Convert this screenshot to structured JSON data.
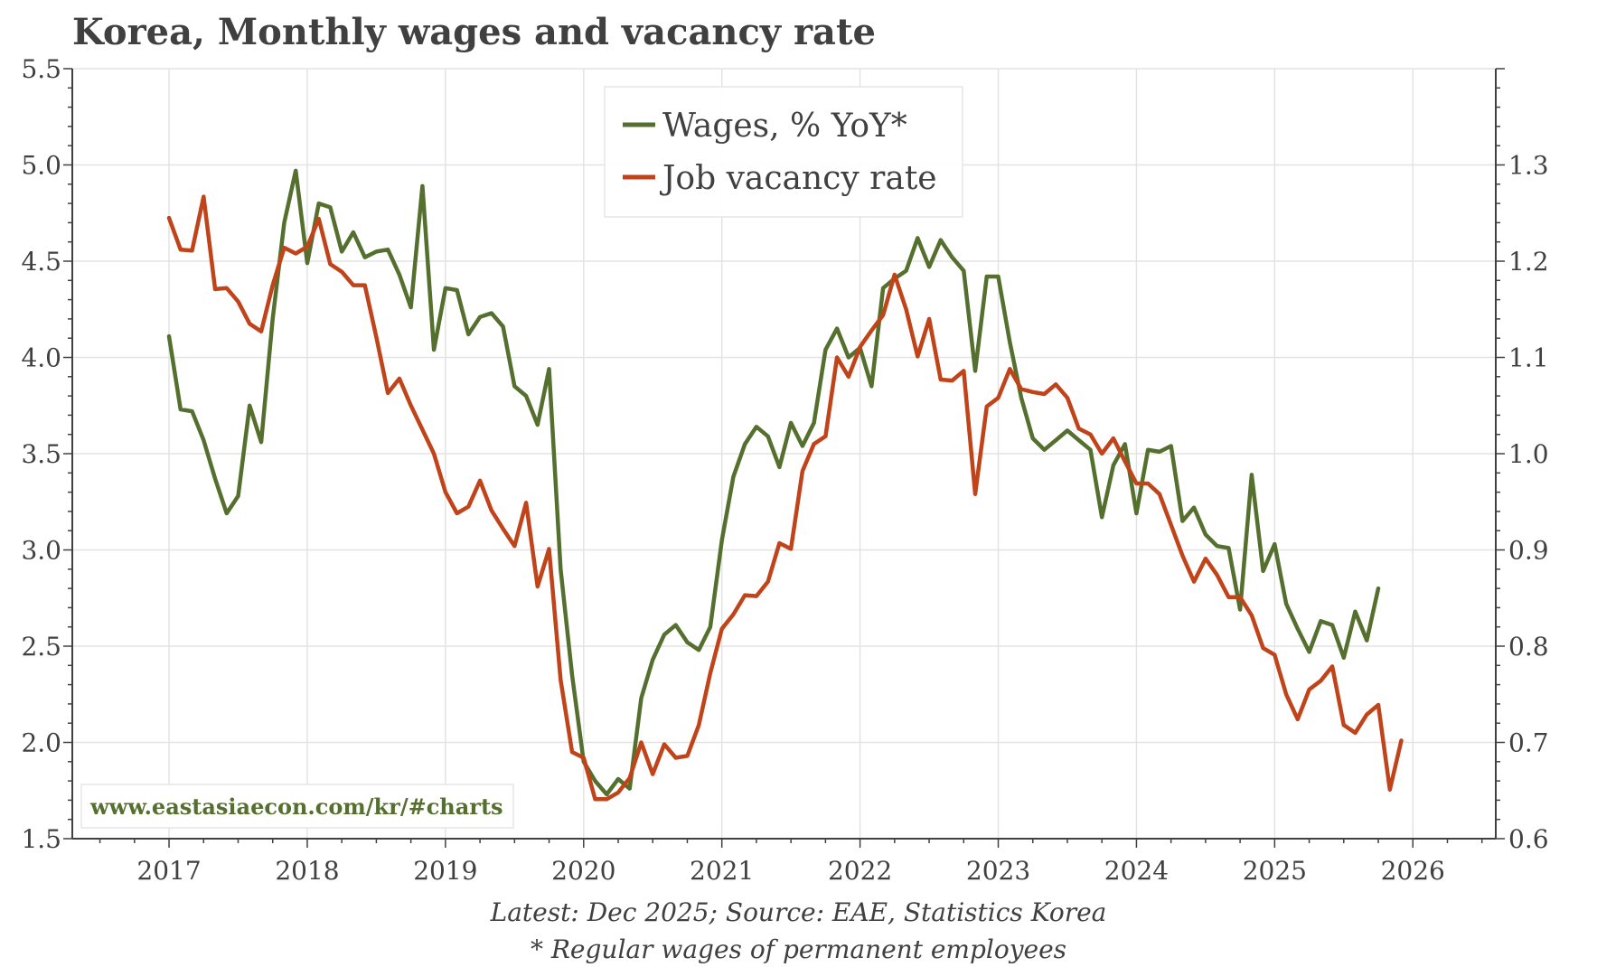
{
  "title": "Korea, Monthly wages and vacancy rate",
  "footnotes": {
    "source": "Latest: Dec 2025; Source: EAE, Statistics Korea",
    "note": "* Regular wages of permanent employees"
  },
  "watermark": "www.eastasiaecon.com/kr/#charts",
  "colors": {
    "wages": "#55702e",
    "vacancy": "#c0431a",
    "text": "#404040",
    "grid": "#e3e3e3",
    "axis": "#404040",
    "watermark": "#55702e"
  },
  "chart_data": {
    "type": "line",
    "title": "Korea, Monthly wages and vacancy rate",
    "xlabel": "",
    "x_ticks": [
      "2017",
      "2018",
      "2019",
      "2020",
      "2021",
      "2022",
      "2023",
      "2024",
      "2025",
      "2026"
    ],
    "xlim": [
      2016.3,
      2026.6
    ],
    "y_left": {
      "ylim": [
        1.5,
        5.5
      ],
      "ticks": [
        "1.5",
        "2.0",
        "2.5",
        "3.0",
        "3.5",
        "4.0",
        "4.5",
        "5.0",
        "5.5"
      ]
    },
    "y_right": {
      "ylim": [
        0.6,
        1.4
      ],
      "ticks": [
        "0.6",
        "0.7",
        "0.8",
        "0.9",
        "1.0",
        "1.1",
        "1.2",
        "1.3"
      ]
    },
    "grid": true,
    "legend_position": "top-center",
    "series": [
      {
        "name": "Wages, % YoY*",
        "axis": "left",
        "start": "2017-01",
        "values": [
          4.11,
          3.73,
          3.72,
          3.57,
          3.37,
          3.19,
          3.28,
          3.75,
          3.56,
          4.2,
          4.7,
          4.97,
          4.49,
          4.8,
          4.78,
          4.55,
          4.65,
          4.52,
          4.55,
          4.56,
          4.43,
          4.26,
          4.89,
          4.04,
          4.36,
          4.35,
          4.12,
          4.21,
          4.23,
          4.16,
          3.85,
          3.8,
          3.65,
          3.94,
          2.9,
          2.35,
          1.9,
          1.8,
          1.73,
          1.81,
          1.76,
          2.23,
          2.43,
          2.56,
          2.61,
          2.52,
          2.48,
          2.6,
          3.05,
          3.38,
          3.55,
          3.64,
          3.59,
          3.43,
          3.66,
          3.54,
          3.66,
          4.04,
          4.15,
          4.0,
          4.05,
          3.85,
          4.36,
          4.41,
          4.45,
          4.62,
          4.47,
          4.61,
          4.52,
          4.45,
          3.93,
          4.42,
          4.42,
          4.08,
          3.79,
          3.58,
          3.52,
          3.57,
          3.62,
          3.57,
          3.52,
          3.17,
          3.44,
          3.55,
          3.19,
          3.52,
          3.51,
          3.54,
          3.15,
          3.22,
          3.08,
          3.02,
          3.01,
          2.69,
          3.39,
          2.89,
          3.03,
          2.72,
          2.59,
          2.47,
          2.63,
          2.61,
          2.44,
          2.68,
          2.53,
          2.8
        ]
      },
      {
        "name": "Job vacancy rate",
        "axis": "right",
        "start": "2017-01",
        "values": [
          1.245,
          1.212,
          1.211,
          1.267,
          1.171,
          1.172,
          1.158,
          1.135,
          1.127,
          1.175,
          1.214,
          1.208,
          1.215,
          1.244,
          1.197,
          1.189,
          1.175,
          1.175,
          1.121,
          1.063,
          1.078,
          1.05,
          1.025,
          1.0,
          0.96,
          0.938,
          0.945,
          0.972,
          0.941,
          0.922,
          0.904,
          0.949,
          0.862,
          0.901,
          0.765,
          0.69,
          0.684,
          0.641,
          0.641,
          0.648,
          0.663,
          0.7,
          0.667,
          0.698,
          0.684,
          0.686,
          0.718,
          0.772,
          0.818,
          0.833,
          0.853,
          0.852,
          0.867,
          0.907,
          0.901,
          0.982,
          1.01,
          1.018,
          1.1,
          1.08,
          1.111,
          1.128,
          1.144,
          1.186,
          1.15,
          1.101,
          1.14,
          1.077,
          1.076,
          1.086,
          0.958,
          1.049,
          1.058,
          1.088,
          1.067,
          1.064,
          1.062,
          1.072,
          1.058,
          1.026,
          1.02,
          1.0,
          1.016,
          0.992,
          0.969,
          0.969,
          0.958,
          0.926,
          0.894,
          0.867,
          0.891,
          0.874,
          0.851,
          0.851,
          0.832,
          0.798,
          0.791,
          0.75,
          0.724,
          0.755,
          0.764,
          0.779,
          0.718,
          0.71,
          0.729,
          0.739,
          0.651,
          0.702
        ]
      }
    ]
  }
}
